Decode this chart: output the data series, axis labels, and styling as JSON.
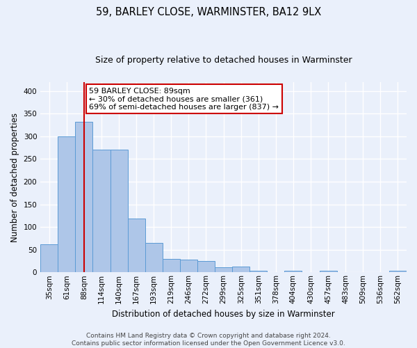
{
  "title1": "59, BARLEY CLOSE, WARMINSTER, BA12 9LX",
  "title2": "Size of property relative to detached houses in Warminster",
  "xlabel": "Distribution of detached houses by size in Warminster",
  "ylabel": "Number of detached properties",
  "categories": [
    "35sqm",
    "61sqm",
    "88sqm",
    "114sqm",
    "140sqm",
    "167sqm",
    "193sqm",
    "219sqm",
    "246sqm",
    "272sqm",
    "299sqm",
    "325sqm",
    "351sqm",
    "378sqm",
    "404sqm",
    "430sqm",
    "457sqm",
    "483sqm",
    "509sqm",
    "536sqm",
    "562sqm"
  ],
  "values": [
    62,
    300,
    332,
    270,
    270,
    118,
    65,
    30,
    28,
    25,
    11,
    12,
    4,
    0,
    4,
    0,
    4,
    0,
    0,
    0,
    3
  ],
  "bar_color": "#aec6e8",
  "bar_edge_color": "#5b9bd5",
  "bg_color": "#eaf0fb",
  "grid_color": "#ffffff",
  "property_bin_index": 2,
  "annotation_text": "59 BARLEY CLOSE: 89sqm\n← 30% of detached houses are smaller (361)\n69% of semi-detached houses are larger (837) →",
  "annotation_box_color": "#ffffff",
  "annotation_box_edge_color": "#cc0000",
  "vline_color": "#cc0000",
  "footer_text": "Contains HM Land Registry data © Crown copyright and database right 2024.\nContains public sector information licensed under the Open Government Licence v3.0.",
  "ylim": [
    0,
    420
  ],
  "yticks": [
    0,
    50,
    100,
    150,
    200,
    250,
    300,
    350,
    400
  ],
  "title1_fontsize": 10.5,
  "title2_fontsize": 9,
  "ylabel_fontsize": 8.5,
  "xlabel_fontsize": 8.5,
  "tick_fontsize": 7.5,
  "annot_fontsize": 8
}
